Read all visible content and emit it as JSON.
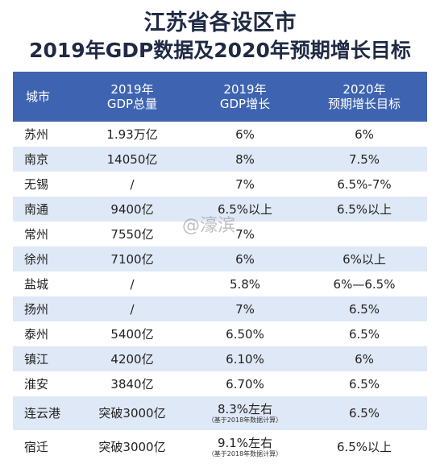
{
  "title": {
    "line1": "江苏省各设区市",
    "line2": "2019年GDP数据及2020年预期增长目标"
  },
  "table": {
    "headers": [
      "城市",
      "2019年\nGDP总量",
      "2019年\nGDP增长",
      "2020年\n预期增长目标"
    ],
    "header_lines": [
      [
        "城市"
      ],
      [
        "2019年",
        "GDP总量"
      ],
      [
        "2019年",
        "GDP增长"
      ],
      [
        "2020年",
        "预期增长目标"
      ]
    ],
    "rows": [
      {
        "city": "苏州",
        "gdp": "1.93万亿",
        "growth": "6%",
        "target": "6%"
      },
      {
        "city": "南京",
        "gdp": "14050亿",
        "growth": "8%",
        "target": "7.5%"
      },
      {
        "city": "无锡",
        "gdp": "/",
        "growth": "7%",
        "target": "6.5%-7%"
      },
      {
        "city": "南通",
        "gdp": "9400亿",
        "growth": "6.5%以上",
        "target": "6.5%以上"
      },
      {
        "city": "常州",
        "gdp": "7550亿",
        "growth": "7%",
        "target": ""
      },
      {
        "city": "徐州",
        "gdp": "7100亿",
        "growth": "6%",
        "target": "6%以上"
      },
      {
        "city": "盐城",
        "gdp": "/",
        "growth": "5.8%",
        "target": "6%—6.5%"
      },
      {
        "city": "扬州",
        "gdp": "/",
        "growth": "7%",
        "target": "6.5%"
      },
      {
        "city": "泰州",
        "gdp": "5400亿",
        "growth": "6.50%",
        "target": "6.5%"
      },
      {
        "city": "镇江",
        "gdp": "4200亿",
        "growth": "6.10%",
        "target": "6%"
      },
      {
        "city": "淮安",
        "gdp": "3840亿",
        "growth": "6.70%",
        "target": "6.5%"
      },
      {
        "city": "连云港",
        "gdp": "突破3000亿",
        "growth": "8.3%左右",
        "growth_note": "（基于2018年数据计算）",
        "target": "6.5%"
      },
      {
        "city": "宿迁",
        "gdp": "突破3000亿",
        "growth": "9.1%左右",
        "growth_note": "（基于2018年数据计算）",
        "target": "6.5%以上"
      }
    ]
  },
  "watermark": "@濠滨"
}
